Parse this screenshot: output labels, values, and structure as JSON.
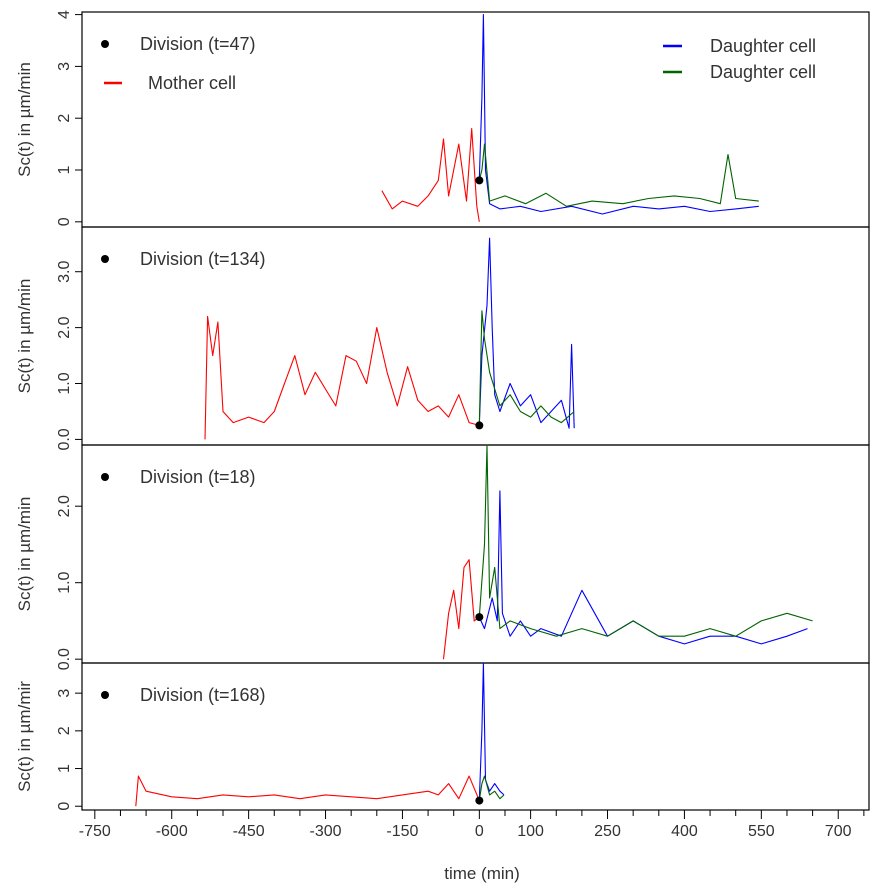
{
  "chart_data": [
    {
      "type": "line",
      "panel": 1,
      "ylabel": "Sc(t) in µm/min",
      "ylim": [
        -0.1,
        4.05
      ],
      "yticks": [
        0,
        1,
        2,
        3,
        4
      ],
      "division_label": "Division (t=47)",
      "division_point": {
        "x": 0,
        "y": 0.8
      },
      "series": [
        {
          "name": "Mother cell",
          "color": "#ff0000",
          "x": [
            -190,
            -170,
            -150,
            -120,
            -100,
            -80,
            -70,
            -60,
            -40,
            -25,
            -15,
            -5,
            0
          ],
          "y": [
            0.6,
            0.25,
            0.4,
            0.3,
            0.5,
            0.8,
            1.6,
            0.5,
            1.5,
            0.4,
            1.8,
            0.3,
            0.0
          ]
        },
        {
          "name": "Daughter cell",
          "color": "#0000ff",
          "x": [
            0,
            5,
            8,
            12,
            20,
            40,
            80,
            120,
            180,
            240,
            300,
            350,
            400,
            450,
            500,
            545
          ],
          "y": [
            0.8,
            2.4,
            4.0,
            1.0,
            0.35,
            0.25,
            0.3,
            0.2,
            0.3,
            0.15,
            0.3,
            0.25,
            0.3,
            0.2,
            0.25,
            0.3
          ]
        },
        {
          "name": "Daughter cell",
          "color": "#006400",
          "x": [
            0,
            5,
            10,
            20,
            50,
            90,
            130,
            170,
            220,
            280,
            330,
            380,
            430,
            470,
            485,
            500,
            545
          ],
          "y": [
            0.8,
            1.0,
            1.5,
            0.4,
            0.5,
            0.35,
            0.55,
            0.3,
            0.4,
            0.35,
            0.45,
            0.5,
            0.45,
            0.35,
            1.3,
            0.45,
            0.4
          ]
        }
      ],
      "legend_entries": [
        {
          "label": "Daughter cell",
          "color": "#0000ff"
        },
        {
          "label": "Daughter cell",
          "color": "#006400"
        },
        {
          "label": "Mother cell",
          "color": "#ff0000"
        }
      ]
    },
    {
      "type": "line",
      "panel": 2,
      "ylabel": "Sc(t) in µm/min",
      "ylim": [
        -0.1,
        3.8
      ],
      "yticks": [
        0.0,
        1.0,
        2.0,
        3.0
      ],
      "ytick_labels": [
        "0.0",
        "1.0",
        "2.0",
        "3.0"
      ],
      "division_label": "Division (t=134)",
      "division_point": {
        "x": 0,
        "y": 0.25
      },
      "series": [
        {
          "name": "Mother cell",
          "color": "#ff0000",
          "x": [
            -535,
            -530,
            -520,
            -510,
            -500,
            -480,
            -450,
            -420,
            -400,
            -380,
            -360,
            -340,
            -320,
            -300,
            -280,
            -260,
            -240,
            -220,
            -200,
            -180,
            -160,
            -140,
            -120,
            -100,
            -80,
            -60,
            -40,
            -20,
            0
          ],
          "y": [
            0.0,
            2.2,
            1.5,
            2.1,
            0.5,
            0.3,
            0.4,
            0.3,
            0.5,
            1.0,
            1.5,
            0.8,
            1.2,
            0.9,
            0.6,
            1.5,
            1.4,
            1.0,
            2.0,
            1.2,
            0.6,
            1.3,
            0.7,
            0.5,
            0.6,
            0.4,
            0.8,
            0.3,
            0.25
          ]
        },
        {
          "name": "Daughter cell",
          "color": "#0000ff",
          "x": [
            0,
            5,
            15,
            20,
            25,
            30,
            40,
            60,
            80,
            100,
            120,
            140,
            160,
            175,
            180,
            185
          ],
          "y": [
            0.25,
            1.5,
            2.4,
            3.6,
            2.0,
            0.8,
            0.5,
            1.0,
            0.6,
            0.8,
            0.3,
            0.5,
            0.7,
            0.2,
            1.7,
            0.2
          ]
        },
        {
          "name": "Daughter cell",
          "color": "#006400",
          "x": [
            0,
            5,
            10,
            20,
            40,
            60,
            80,
            100,
            120,
            140,
            160,
            185
          ],
          "y": [
            0.25,
            2.3,
            1.8,
            1.2,
            0.6,
            0.8,
            0.5,
            0.4,
            0.6,
            0.4,
            0.3,
            0.5
          ]
        }
      ]
    },
    {
      "type": "line",
      "panel": 3,
      "ylabel": "Sc(t) in µm/min",
      "ylim": [
        -0.05,
        2.8
      ],
      "yticks": [
        0.0,
        1.0,
        2.0
      ],
      "ytick_labels": [
        "0.0",
        "1.0",
        "2.0"
      ],
      "division_label": "Division (t=18)",
      "division_point": {
        "x": 0,
        "y": 0.55
      },
      "series": [
        {
          "name": "Mother cell",
          "color": "#ff0000",
          "x": [
            -70,
            -60,
            -50,
            -40,
            -30,
            -20,
            -10,
            0
          ],
          "y": [
            0.0,
            0.6,
            0.9,
            0.4,
            1.2,
            1.3,
            0.5,
            0.55
          ]
        },
        {
          "name": "Daughter cell",
          "color": "#0000ff",
          "x": [
            0,
            10,
            25,
            35,
            40,
            45,
            60,
            80,
            100,
            120,
            160,
            200,
            250,
            300,
            350,
            400,
            450,
            500,
            550,
            600,
            640
          ],
          "y": [
            0.55,
            0.4,
            0.8,
            0.5,
            2.2,
            0.6,
            0.3,
            0.5,
            0.3,
            0.4,
            0.3,
            0.9,
            0.3,
            0.5,
            0.3,
            0.2,
            0.3,
            0.3,
            0.2,
            0.3,
            0.4
          ]
        },
        {
          "name": "Daughter cell",
          "color": "#006400",
          "x": [
            0,
            10,
            15,
            20,
            30,
            40,
            60,
            100,
            150,
            200,
            250,
            300,
            350,
            400,
            450,
            500,
            550,
            600,
            650
          ],
          "y": [
            0.55,
            1.5,
            2.8,
            0.8,
            1.2,
            0.4,
            0.5,
            0.4,
            0.3,
            0.4,
            0.3,
            0.5,
            0.3,
            0.3,
            0.4,
            0.3,
            0.5,
            0.6,
            0.5
          ]
        }
      ]
    },
    {
      "type": "line",
      "panel": 4,
      "ylabel": "Sc(t) in µm/mir",
      "ylim": [
        -0.1,
        3.8
      ],
      "yticks": [
        0,
        1,
        2,
        3
      ],
      "division_label": "Division (t=168)",
      "division_point": {
        "x": 0,
        "y": 0.15
      },
      "series": [
        {
          "name": "Mother cell",
          "color": "#ff0000",
          "x": [
            -670,
            -665,
            -650,
            -600,
            -550,
            -500,
            -450,
            -400,
            -350,
            -300,
            -250,
            -200,
            -150,
            -100,
            -80,
            -60,
            -40,
            -20,
            0
          ],
          "y": [
            0.0,
            0.8,
            0.4,
            0.25,
            0.2,
            0.3,
            0.25,
            0.3,
            0.2,
            0.3,
            0.25,
            0.2,
            0.3,
            0.4,
            0.3,
            0.6,
            0.2,
            0.8,
            0.15
          ]
        },
        {
          "name": "Daughter cell",
          "color": "#0000ff",
          "x": [
            0,
            5,
            8,
            12,
            20,
            30,
            40,
            48
          ],
          "y": [
            0.15,
            2.0,
            3.8,
            0.7,
            0.4,
            0.6,
            0.4,
            0.3
          ]
        },
        {
          "name": "Daughter cell",
          "color": "#006400",
          "x": [
            0,
            5,
            10,
            20,
            30,
            40,
            48
          ],
          "y": [
            0.15,
            0.6,
            0.8,
            0.3,
            0.4,
            0.2,
            0.3
          ]
        }
      ]
    }
  ],
  "xaxis": {
    "xlim": [
      -775,
      760
    ],
    "major_ticks": [
      -750,
      -600,
      -450,
      -300,
      -150,
      0,
      100,
      250,
      400,
      550,
      700
    ],
    "major_labels": [
      "-750",
      "-600",
      "-450",
      "-300",
      "-150",
      "0",
      "100",
      "250",
      "400",
      "550",
      "700"
    ],
    "minor_ticks": [
      -700,
      -650,
      -550,
      -500,
      -400,
      -350,
      -250,
      -200,
      -100,
      -50,
      50,
      150,
      200,
      300,
      350,
      450,
      500,
      600,
      650,
      750
    ],
    "xlabel": "time (min)"
  }
}
